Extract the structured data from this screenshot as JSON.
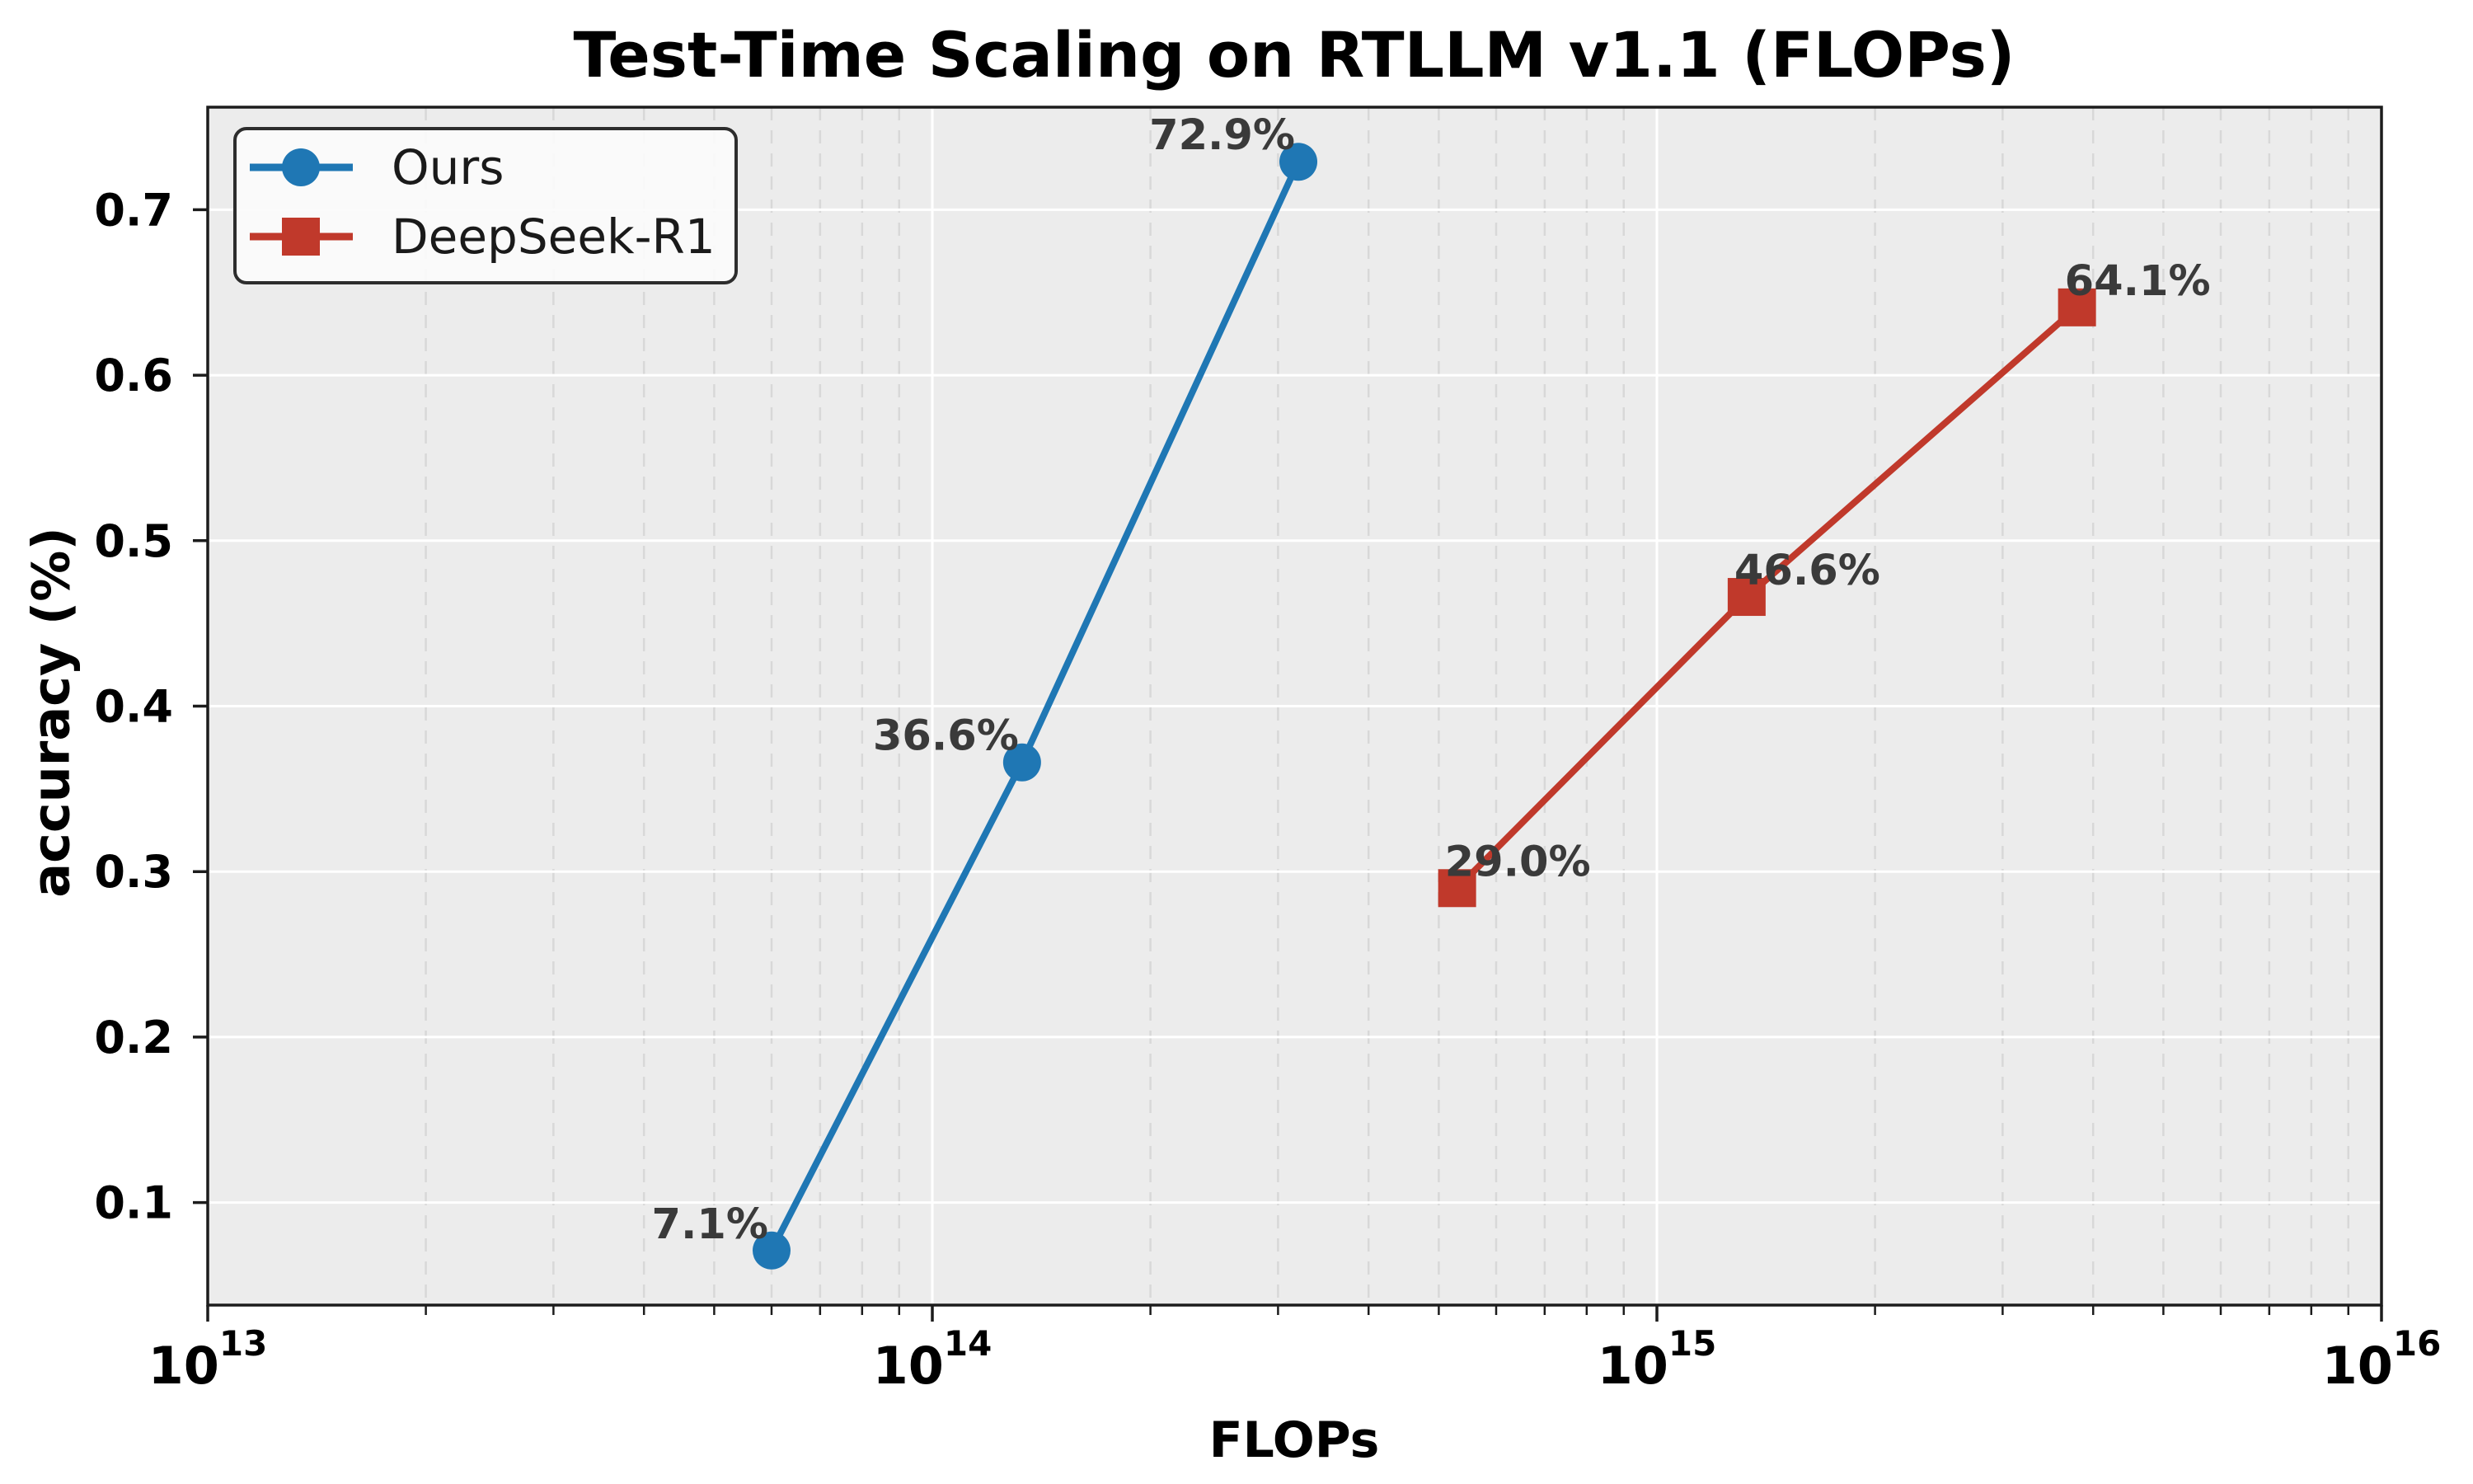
{
  "chart_data": {
    "type": "line",
    "title": "Test-Time Scaling on RTLLM v1.1 (FLOPs)",
    "xlabel": "FLOPs",
    "ylabel": "accuracy (%)",
    "x_scale": "log",
    "xlim": [
      10000000000000.0,
      1e+16
    ],
    "ylim": [
      0.038,
      0.762
    ],
    "x_tick_base": "10",
    "x_tick_exponents": [
      13,
      14,
      15,
      16
    ],
    "y_ticks": [
      0.1,
      0.2,
      0.3,
      0.4,
      0.5,
      0.6,
      0.7
    ],
    "grid": {
      "major": true,
      "minor_vertical_dashed": true
    },
    "legend": {
      "position": "upper left"
    },
    "series": [
      {
        "name": "Ours",
        "color": "#1f77b4",
        "marker": "circle",
        "label_side": "left",
        "x": [
          60000000000000.0,
          133000000000000.0,
          320000000000000.0
        ],
        "y": [
          0.071,
          0.366,
          0.729
        ],
        "point_labels": [
          "7.1%",
          "36.6%",
          "72.9%"
        ]
      },
      {
        "name": "DeepSeek-R1",
        "color": "#c0392b",
        "marker": "square",
        "label_side": "right",
        "x": [
          530000000000000.0,
          1330000000000000.0,
          3800000000000000.0
        ],
        "y": [
          0.29,
          0.466,
          0.641
        ],
        "point_labels": [
          "29.0%",
          "46.6%",
          "64.1%"
        ]
      }
    ],
    "style": {
      "plot_bg": "#ececec",
      "figure_bg": "#ffffff",
      "major_grid_color": "#ffffff",
      "minor_grid_color": "#d8d8d8",
      "spine_color": "#1c1c1c",
      "annotation_color": "#3a3a3a",
      "tick_label_color": "#000000",
      "legend_bg": "#fbfbfb",
      "legend_border": "#2d2d2d"
    }
  }
}
